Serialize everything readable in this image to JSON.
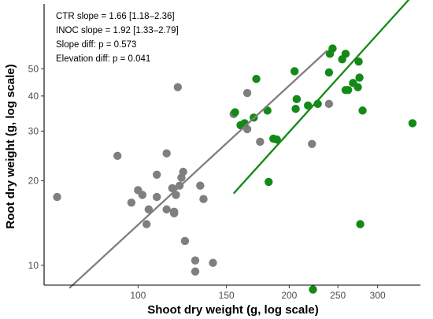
{
  "chart_data": {
    "type": "scatter",
    "xlabel": "Shoot dry weight (g, log scale)",
    "ylabel": "Root dry weight (g, log scale)",
    "x_scale": "log",
    "y_scale": "log",
    "xlim": [
      65,
      365
    ],
    "ylim": [
      8.5,
      85
    ],
    "x_ticks": [
      100,
      150,
      200,
      250,
      300
    ],
    "y_ticks": [
      10,
      20,
      30,
      40,
      50
    ],
    "grid": false,
    "legend": "none",
    "annotations": [
      "CTR slope = 1.66 [1.18–2.36]",
      "INOC slope = 1.92 [1.33–2.79]",
      "Slope diff: p = 0.573",
      "Elevation diff: p = 0.041"
    ],
    "series": [
      {
        "color": "#7f7f7f",
        "points": [
          [
            69,
            17.5
          ],
          [
            91,
            24.5
          ],
          [
            97,
            16.7
          ],
          [
            100,
            18.5
          ],
          [
            102,
            17.8
          ],
          [
            104,
            14
          ],
          [
            105,
            15.8
          ],
          [
            109,
            21
          ],
          [
            109,
            17.5
          ],
          [
            114,
            15.8
          ],
          [
            114,
            25
          ],
          [
            117,
            18.8
          ],
          [
            118,
            15.5
          ],
          [
            118,
            15.3
          ],
          [
            119,
            17.8
          ],
          [
            120,
            43
          ],
          [
            121,
            19.2
          ],
          [
            122,
            20.5
          ],
          [
            123,
            21.5
          ],
          [
            124,
            12.2
          ],
          [
            130,
            9.5
          ],
          [
            130,
            10.4
          ],
          [
            133,
            19.2
          ],
          [
            135,
            17.2
          ],
          [
            141,
            10.2
          ],
          [
            155,
            34.5
          ],
          [
            165,
            41
          ],
          [
            165,
            30.5
          ],
          [
            175,
            27.5
          ],
          [
            222,
            27
          ],
          [
            240,
            37.5
          ]
        ],
        "fit": [
          [
            73,
            8.3
          ],
          [
            238,
            58
          ]
        ]
      },
      {
        "color": "#138a17",
        "points": [
          [
            156,
            35
          ],
          [
            160,
            31.5
          ],
          [
            163,
            32
          ],
          [
            170,
            33.5
          ],
          [
            172,
            46
          ],
          [
            181,
            35.5
          ],
          [
            182,
            19.8
          ],
          [
            186,
            28.2
          ],
          [
            189,
            28
          ],
          [
            205,
            49
          ],
          [
            206,
            36
          ],
          [
            207,
            39
          ],
          [
            218,
            37
          ],
          [
            223,
            8.2
          ],
          [
            228,
            37.5
          ],
          [
            240,
            48.5
          ],
          [
            241,
            56.5
          ],
          [
            244,
            59
          ],
          [
            255,
            54
          ],
          [
            259,
            42
          ],
          [
            259,
            56.5
          ],
          [
            262,
            42
          ],
          [
            268,
            44.5
          ],
          [
            274,
            43
          ],
          [
            275,
            53
          ],
          [
            276,
            46.5
          ],
          [
            277,
            14
          ],
          [
            280,
            35.5
          ],
          [
            352,
            32
          ]
        ],
        "fit": [
          [
            155,
            18
          ],
          [
            350,
            90
          ]
        ]
      }
    ]
  }
}
